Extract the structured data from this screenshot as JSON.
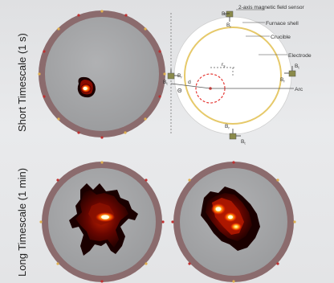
{
  "rows": {
    "short": "Short Timescale (1 s)",
    "long": "Long Timescale (1 min)"
  },
  "schematic": {
    "sensor_label": "2-axis magnetic field sensor",
    "furnace_shell": "Furnace shell",
    "crucible": "Crucible",
    "electrode": "Electrode",
    "arc": "Arc",
    "r_label": "r",
    "r_subscript": "s",
    "d_label": "d",
    "theta_label": "Θ",
    "b_label": "B",
    "t_subscript": "t",
    "r_sub": "r"
  },
  "colors": {
    "shell": "#8a6a6c",
    "inner_disk": "#a5a6a8",
    "crucible_ring": "#e6c96a",
    "arc_circle": "#e53935",
    "hot": "#fffbe0",
    "mid": "#ff5a00",
    "cool": "#1a0000"
  }
}
